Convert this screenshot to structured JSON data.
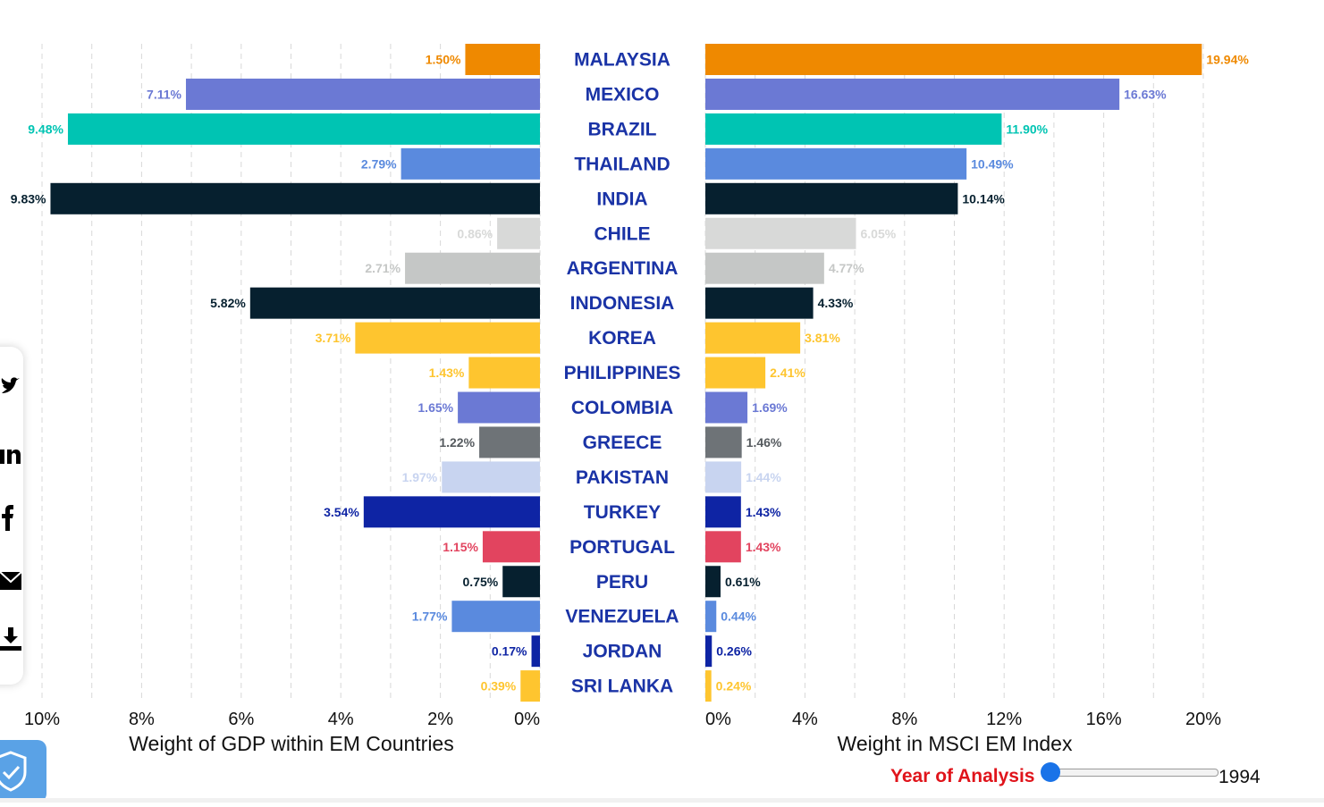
{
  "chart_data": {
    "type": "bar",
    "categories": [
      "MALAYSIA",
      "MEXICO",
      "BRAZIL",
      "THAILAND",
      "INDIA",
      "CHILE",
      "ARGENTINA",
      "INDONESIA",
      "KOREA",
      "PHILIPPINES",
      "COLOMBIA",
      "GREECE",
      "PAKISTAN",
      "TURKEY",
      "PORTUGAL",
      "PERU",
      "VENEZUELA",
      "JORDAN",
      "SRI LANKA"
    ],
    "colors": [
      "#ef8900",
      "#6b79d4",
      "#00c4b3",
      "#5a8ade",
      "#06202f",
      "#d8d9d8",
      "#c5c7c6",
      "#06202f",
      "#fec52f",
      "#fec52f",
      "#6b79d4",
      "#6e7377",
      "#c8d4f0",
      "#0e24a4",
      "#e2445f",
      "#06202f",
      "#5a8ade",
      "#0e24a4",
      "#fec52f"
    ],
    "label_colors": [
      "#ef8900",
      "#6b79d4",
      "#00c4b3",
      "#5a8ade",
      "#06202f",
      "#d8d9d8",
      "#c5c7c6",
      "#06202f",
      "#fec52f",
      "#fec52f",
      "#6b79d4",
      "#555a5e",
      "#c8d4f0",
      "#0e24a4",
      "#e2445f",
      "#06202f",
      "#5a8ade",
      "#0e24a4",
      "#fec52f"
    ],
    "series": [
      {
        "values": [
          1.5,
          7.11,
          9.48,
          2.79,
          9.83,
          0.86,
          2.71,
          5.82,
          3.71,
          1.43,
          1.65,
          1.22,
          1.97,
          3.54,
          1.15,
          0.75,
          1.77,
          0.17,
          0.39
        ],
        "labels": [
          "1.50%",
          "7.11%",
          "9.48%",
          "2.79%",
          "9.83%",
          "0.86%",
          "2.71%",
          "5.82%",
          "3.71%",
          "1.43%",
          "1.65%",
          "1.22%",
          "1.97%",
          "3.54%",
          "1.15%",
          "0.75%",
          "1.77%",
          "0.17%",
          "0.39%"
        ],
        "xlabel": "Weight of GDP within EM Countries",
        "xlim": [
          0,
          10
        ],
        "ticks": [
          "10%",
          "8%",
          "6%",
          "4%",
          "2%",
          "0%"
        ]
      },
      {
        "values": [
          19.94,
          16.63,
          11.9,
          10.49,
          10.14,
          6.05,
          4.77,
          4.33,
          3.81,
          2.41,
          1.69,
          1.46,
          1.44,
          1.43,
          1.43,
          0.61,
          0.44,
          0.26,
          0.24
        ],
        "labels": [
          "19.94%",
          "16.63%",
          "11.90%",
          "10.49%",
          "10.14%",
          "6.05%",
          "4.77%",
          "4.33%",
          "3.81%",
          "2.41%",
          "1.69%",
          "1.46%",
          "1.44%",
          "1.43%",
          "1.43%",
          "0.61%",
          "0.44%",
          "0.26%",
          "0.24%"
        ],
        "xlabel": "Weight in MSCI EM Index",
        "xlim": [
          0,
          20
        ],
        "ticks": [
          "0%",
          "4%",
          "8%",
          "12%",
          "16%",
          "20%"
        ]
      }
    ],
    "grid": true
  },
  "controls": {
    "year_label": "Year of Analysis",
    "year_value": "1994",
    "slider_position": 0.0
  },
  "share_icons": [
    "twitter-icon",
    "linkedin-icon",
    "facebook-icon",
    "email-icon",
    "download-icon"
  ],
  "accent_color": "#1a73e8"
}
